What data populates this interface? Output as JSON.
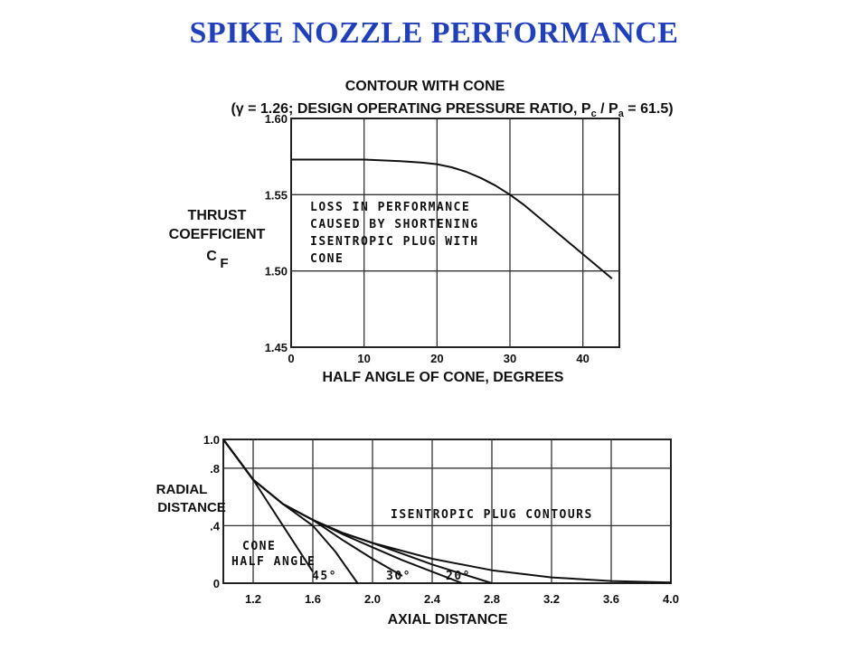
{
  "page": {
    "title": "SPIKE NOZZLE PERFORMANCE"
  },
  "chart_data": [
    {
      "type": "line",
      "title": "CONTOUR WITH CONE",
      "subtitle_parts": {
        "gamma": "(γ = 1.26; DESIGN OPERATING PRESSURE RATIO, P",
        "sub_c": "c",
        "slash": " / P",
        "sub_a": "a",
        "tail": " = 61.5)"
      },
      "xlabel": "HALF ANGLE OF CONE, DEGREES",
      "ylabel_lines": [
        "THRUST",
        "COEFFICIENT",
        "C"
      ],
      "ylabel_sub": "F",
      "x_ticks": [
        "0",
        "10",
        "20",
        "30",
        "40"
      ],
      "x_tick_values": [
        0,
        10,
        20,
        30,
        40
      ],
      "y_ticks": [
        "1.45",
        "1.50",
        "1.55",
        "1.60"
      ],
      "y_tick_values": [
        1.45,
        1.5,
        1.55,
        1.6
      ],
      "xlim": [
        0,
        45
      ],
      "ylim": [
        1.45,
        1.6
      ],
      "grid": true,
      "annotation": [
        "LOSS IN PERFORMANCE",
        "CAUSED BY SHORTENING",
        "ISENTROPIC PLUG WITH",
        "CONE"
      ],
      "series": [
        {
          "x": [
            0,
            5,
            10,
            15,
            18,
            20,
            22,
            24,
            26,
            28,
            30,
            32,
            34,
            36,
            38,
            40,
            42,
            44
          ],
          "y": [
            1.573,
            1.573,
            1.573,
            1.572,
            1.571,
            1.57,
            1.568,
            1.565,
            1.561,
            1.556,
            1.55,
            1.543,
            1.535,
            1.527,
            1.519,
            1.511,
            1.503,
            1.495
          ]
        }
      ]
    },
    {
      "type": "line",
      "xlabel": "AXIAL DISTANCE",
      "ylabel_lines": [
        "RADIAL",
        "DISTANCE"
      ],
      "x_ticks": [
        "1.2",
        "1.6",
        "2.0",
        "2.4",
        "2.8",
        "3.2",
        "3.6",
        "4.0"
      ],
      "x_tick_values": [
        1.2,
        1.6,
        2.0,
        2.4,
        2.8,
        3.2,
        3.6,
        4.0
      ],
      "y_ticks": [
        "0",
        ".4",
        ".8",
        "1.0"
      ],
      "y_tick_values": [
        0,
        0.4,
        0.8,
        1.0
      ],
      "xlim": [
        1.0,
        4.0
      ],
      "ylim": [
        0,
        1.0
      ],
      "grid": true,
      "annotations": {
        "plug_contours": "ISENTROPIC PLUG CONTOURS",
        "cone_half_angle": [
          "CONE",
          "HALF ANGLE"
        ],
        "angle_labels": [
          "45°",
          "30°",
          "20°"
        ]
      },
      "series": [
        {
          "x": [
            1.0,
            1.2,
            1.4,
            1.6,
            1.8,
            2.0,
            2.4,
            2.8,
            3.2,
            3.6,
            4.0
          ],
          "y": [
            1.0,
            0.72,
            0.55,
            0.44,
            0.35,
            0.28,
            0.17,
            0.09,
            0.04,
            0.015,
            0.005
          ]
        },
        {
          "x": [
            1.0,
            1.2,
            1.4,
            1.6,
            1.8,
            2.0,
            2.4,
            2.8
          ],
          "y": [
            1.0,
            0.72,
            0.55,
            0.44,
            0.35,
            0.28,
            0.13,
            0.0
          ]
        },
        {
          "x": [
            1.0,
            1.2,
            1.4,
            1.6,
            1.8,
            2.0,
            2.2,
            2.6
          ],
          "y": [
            1.0,
            0.72,
            0.55,
            0.44,
            0.34,
            0.25,
            0.16,
            0.0
          ]
        },
        {
          "x": [
            1.0,
            1.2,
            1.4,
            1.6,
            1.8,
            2.0,
            2.2
          ],
          "y": [
            1.0,
            0.72,
            0.55,
            0.44,
            0.3,
            0.17,
            0.05
          ]
        },
        {
          "x": [
            1.0,
            1.2,
            1.4,
            1.6,
            1.75,
            1.9
          ],
          "y": [
            1.0,
            0.72,
            0.55,
            0.4,
            0.22,
            0.0
          ]
        },
        {
          "x": [
            1.0,
            1.2,
            1.4,
            1.6
          ],
          "y": [
            1.0,
            0.72,
            0.4,
            0.08
          ]
        }
      ]
    }
  ]
}
